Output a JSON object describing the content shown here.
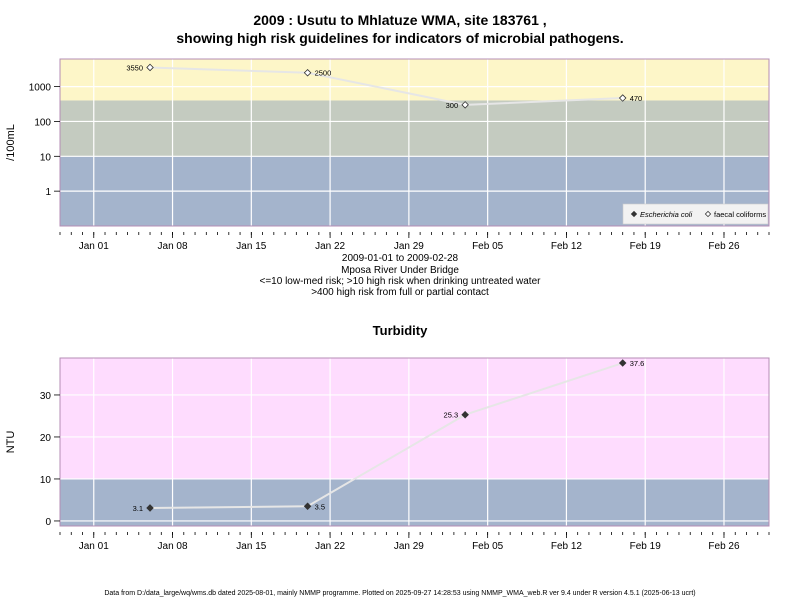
{
  "header": {
    "title_line1": "2009 : Usutu to Mhlatuze WMA, site 183761 ,",
    "title_line2": "showing high risk guidelines for indicators of microbial pathogens."
  },
  "info": {
    "date_range": "2009-01-01 to 2009-02-28",
    "site_name": "Mposa River Under Bridge",
    "guideline_1": "<=10 low-med risk; >10 high risk when drinking untreated water",
    "guideline_2": ">400 high risk from full or partial contact"
  },
  "footer": "Data from D:/data_large/wq/wms.db dated 2025-08-01, mainly NMMP programme. Plotted on 2025-09-27 14:28:53 using NMMP_WMA_web.R ver 9.4 under R version 4.5.1 (2025-06-13 ucrt)",
  "chart_data": [
    {
      "type": "line",
      "title": "",
      "ylabel": "/100mL",
      "y_scale": "log",
      "x_ticks": [
        "Jan 01",
        "Jan 08",
        "Jan 15",
        "Jan 22",
        "Jan 29",
        "Feb 05",
        "Feb 12",
        "Feb 19",
        "Feb 26"
      ],
      "y_ticks": [
        "1",
        "10",
        "100",
        "1000"
      ],
      "xlim": [
        "2008-12-29",
        "2009-03-02"
      ],
      "ylim": [
        0.1,
        6200
      ],
      "bands": [
        {
          "from": 0.1,
          "to": 10,
          "color": "#a4b4cc"
        },
        {
          "from": 10,
          "to": 400,
          "color": "#c4cbc0"
        },
        {
          "from": 400,
          "to": 6200,
          "color": "#fdf6c8"
        }
      ],
      "series": [
        {
          "name": "faecal coliforms",
          "marker": "open-diamond",
          "x": [
            "2009-01-06",
            "2009-01-20",
            "2009-02-03",
            "2009-02-17"
          ],
          "y": [
            3550,
            2500,
            300,
            470
          ],
          "labels": [
            "3550",
            "2500",
            "300",
            "470"
          ]
        }
      ],
      "legend": {
        "position": "bottom-right",
        "items": [
          {
            "label": "Escherichia coli",
            "marker": "filled-diamond"
          },
          {
            "label": "faecal coliforms",
            "marker": "open-diamond"
          }
        ]
      },
      "grid": true
    },
    {
      "type": "line",
      "title": "Turbidity",
      "ylabel": "NTU",
      "x_ticks": [
        "Jan 01",
        "Jan 08",
        "Jan 15",
        "Jan 22",
        "Jan 29",
        "Feb 05",
        "Feb 12",
        "Feb 19",
        "Feb 26"
      ],
      "y_ticks": [
        "0",
        "10",
        "20",
        "30"
      ],
      "xlim": [
        "2008-12-29",
        "2009-03-02"
      ],
      "ylim": [
        -1.2,
        38.8
      ],
      "bands": [
        {
          "from": -1.2,
          "to": 10,
          "color": "#a4b4cc"
        },
        {
          "from": 10,
          "to": 38.8,
          "color": "#fedcfe"
        }
      ],
      "series": [
        {
          "name": "",
          "marker": "filled-diamond",
          "x": [
            "2009-01-06",
            "2009-01-20",
            "2009-02-03",
            "2009-02-17"
          ],
          "y": [
            3.1,
            3.5,
            25.3,
            37.6
          ],
          "labels": [
            "3.1",
            "3.5",
            "25.3",
            "37.6"
          ]
        }
      ],
      "grid": true
    }
  ]
}
